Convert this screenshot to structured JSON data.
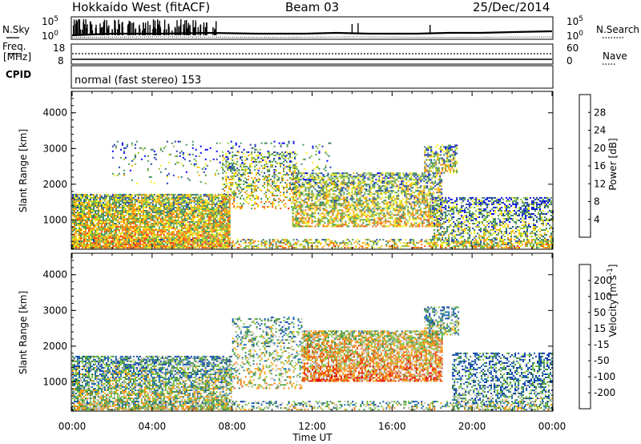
{
  "header": {
    "radar": "Hokkaido West (fitACF)",
    "beam": "Beam 03",
    "date": "25/Dec/2014"
  },
  "side_labels": {
    "nsky": "N.Sky",
    "nsearch": "N.Search",
    "freq": "Freq.",
    "freq_unit": "[MHz]",
    "nave": "Nave",
    "cpid": "CPID"
  },
  "noise_panel": {
    "left_ticks": [
      "10^5",
      "10^0"
    ],
    "right_ticks": [
      "10^5",
      "10^0"
    ]
  },
  "freq_panel": {
    "left_ticks": [
      "18",
      "8"
    ],
    "right_ticks": [
      "60",
      "0"
    ]
  },
  "cpid_panel": {
    "text": "normal (fast stereo) 153"
  },
  "chart_data": [
    {
      "type": "heatmap",
      "name": "power",
      "ylabel": "Slant Range [km]",
      "ylim": [
        180,
        4600
      ],
      "xlim": [
        0,
        24
      ],
      "yticks": [
        1000,
        2000,
        3000,
        4000
      ],
      "colorbar": {
        "label": "Power [dB]",
        "ticks": [
          "28",
          "24",
          "20",
          "16",
          "12",
          "8",
          "4"
        ],
        "colors": [
          "#0000ff",
          "#1f3ea8",
          "#3e7c6c",
          "#4a9a56",
          "#8fc33a",
          "#f7ee18",
          "#fdb20f",
          "#f98610",
          "#f35b10",
          "#e8290d",
          "#e20000"
        ]
      },
      "regions": [
        {
          "t0": 0.0,
          "t1": 7.9,
          "r0": 200,
          "r1": 1700,
          "dense": 0.85,
          "level": 0.62
        },
        {
          "t0": 7.5,
          "t1": 11.2,
          "r0": 1300,
          "r1": 2900,
          "dense": 0.35,
          "level": 0.55
        },
        {
          "t0": 11.0,
          "t1": 18.5,
          "r0": 800,
          "r1": 2300,
          "dense": 0.6,
          "level": 0.55
        },
        {
          "t0": 17.6,
          "t1": 19.2,
          "r0": 2300,
          "r1": 3100,
          "dense": 0.55,
          "level": 0.5
        },
        {
          "t0": 18.0,
          "t1": 24.0,
          "r0": 200,
          "r1": 1600,
          "dense": 0.45,
          "level": 0.45
        },
        {
          "t0": 0.0,
          "t1": 24.0,
          "r0": 200,
          "r1": 450,
          "dense": 0.45,
          "level": 0.6
        },
        {
          "t0": 2.0,
          "t1": 13.0,
          "r0": 2000,
          "r1": 3200,
          "dense": 0.08,
          "level": 0.4
        }
      ]
    },
    {
      "type": "heatmap",
      "name": "velocity",
      "ylabel": "Slant Range [km]",
      "xlabel": "Time UT",
      "ylim": [
        180,
        4600
      ],
      "xlim": [
        0,
        24
      ],
      "yticks": [
        1000,
        2000,
        3000,
        4000
      ],
      "xticks": [
        "00:00",
        "04:00",
        "08:00",
        "12:00",
        "16:00",
        "20:00",
        "00:00"
      ],
      "colorbar": {
        "label": "Velocity [m s^-1]",
        "ticks": [
          "200",
          "100",
          "50",
          "15",
          "-15",
          "-50",
          "-100",
          "-200"
        ],
        "colors": [
          "#0a3ca8",
          "#1f6eb0",
          "#3f8a4a",
          "#77c23c",
          "#bfbfb4",
          "#f5a412",
          "#f57a10",
          "#e84a0c",
          "#e20000"
        ]
      },
      "regions": [
        {
          "t0": 0.0,
          "t1": 8.0,
          "r0": 200,
          "r1": 1700,
          "dense": 0.7,
          "level": 0.5
        },
        {
          "t0": 8.0,
          "t1": 11.5,
          "r0": 800,
          "r1": 2800,
          "dense": 0.3,
          "level": 0.52
        },
        {
          "t0": 11.5,
          "t1": 18.5,
          "r0": 1000,
          "r1": 2400,
          "dense": 0.75,
          "level": 0.72
        },
        {
          "t0": 17.6,
          "t1": 19.3,
          "r0": 2300,
          "r1": 3100,
          "dense": 0.5,
          "level": 0.45
        },
        {
          "t0": 19.0,
          "t1": 24.0,
          "r0": 200,
          "r1": 1800,
          "dense": 0.45,
          "level": 0.35
        },
        {
          "t0": 0.0,
          "t1": 24.0,
          "r0": 200,
          "r1": 450,
          "dense": 0.35,
          "level": 0.5
        }
      ]
    }
  ],
  "axis": {
    "xlabel": "Time UT"
  }
}
